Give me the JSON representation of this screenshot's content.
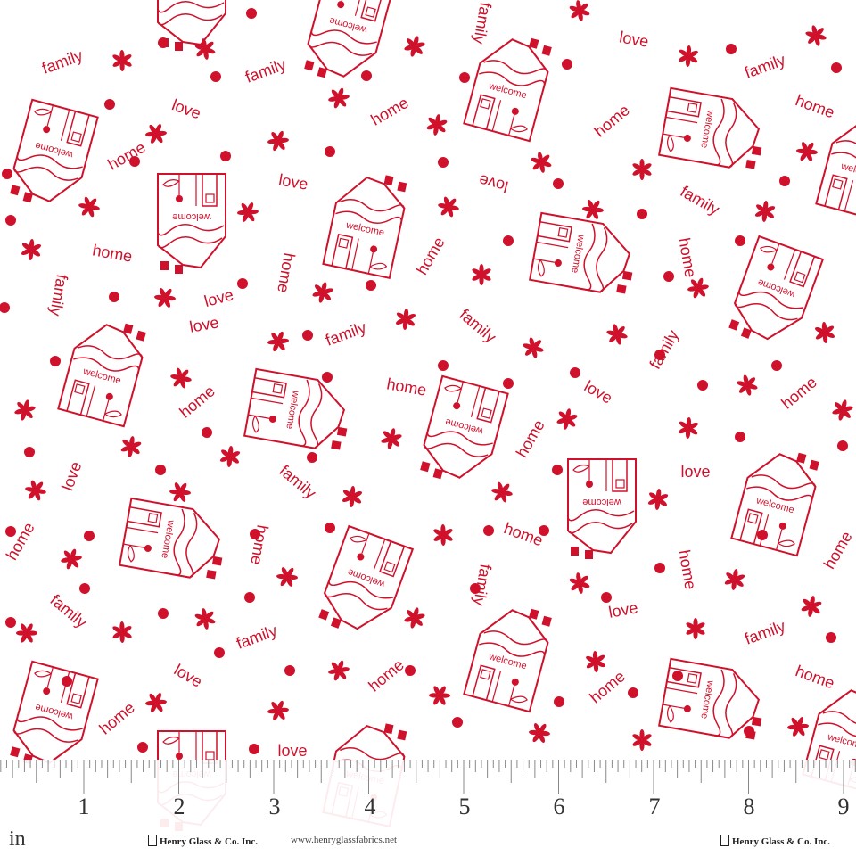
{
  "fabric": {
    "background": "#ffffff",
    "print_color": "#d0112b",
    "motif_words": [
      "love",
      "home",
      "family"
    ],
    "house_label": "welcome"
  },
  "ruler": {
    "unit": "in",
    "numbers": [
      "1",
      "2",
      "3",
      "4",
      "5",
      "6",
      "7",
      "8",
      "9"
    ],
    "brand_left": "Henry Glass & Co. Inc.",
    "website": "www.henryglassfabrics.net",
    "brand_right": "Henry Glass & Co. Inc."
  }
}
